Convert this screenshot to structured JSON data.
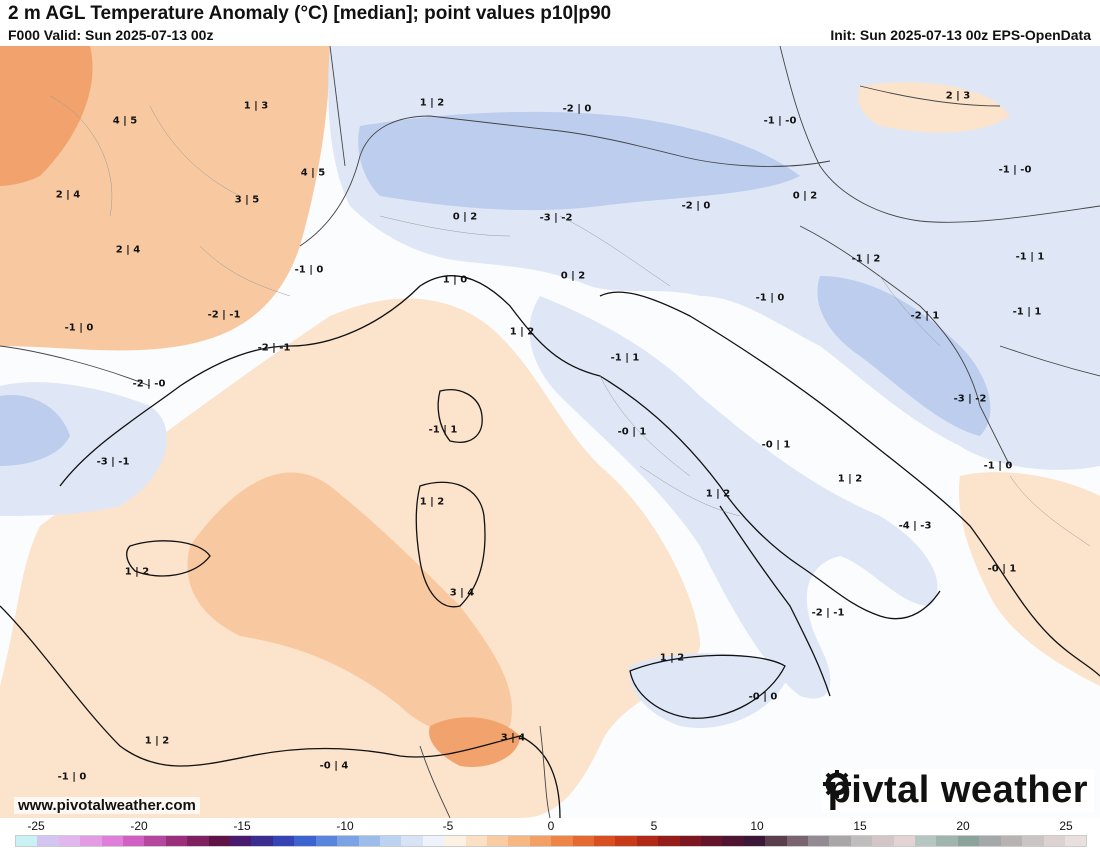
{
  "header": {
    "title": "2 m AGL Temperature Anomaly (°C) [median]; point values p10|p90",
    "valid": "F000 Valid: Sun 2025-07-13 00z",
    "init": "Init: Sun 2025-07-13 00z EPS-OpenData"
  },
  "footer": {
    "website": "www.pivotalweather.com",
    "brand_left": "piv",
    "brand_right": "tal weather"
  },
  "point_values": [
    {
      "text": "4 | 5"
    },
    {
      "text": "1 | 3"
    },
    {
      "text": "1 | 2"
    },
    {
      "text": "-2 | 0"
    },
    {
      "text": "-1 | -0"
    },
    {
      "text": "2 | 3"
    },
    {
      "text": "4 | 5"
    },
    {
      "text": "2 | 4"
    },
    {
      "text": "3 | 5"
    },
    {
      "text": "0 | 2"
    },
    {
      "text": "-3 | -2"
    },
    {
      "text": "-2 | 0"
    },
    {
      "text": "0 | 2"
    },
    {
      "text": "-1 | -0"
    },
    {
      "text": "2 | 4"
    },
    {
      "text": "-1 | 0"
    },
    {
      "text": "1 | 0"
    },
    {
      "text": "0 | 2"
    },
    {
      "text": "-1 | 2"
    },
    {
      "text": "-1 | 1"
    },
    {
      "text": "-1 | 0"
    },
    {
      "text": "-2 | -1"
    },
    {
      "text": "-1 | 0"
    },
    {
      "text": "-2 | 1"
    },
    {
      "text": "-1 | 1"
    },
    {
      "text": "1 | 2"
    },
    {
      "text": "-2 | -1"
    },
    {
      "text": "-1 | 1"
    },
    {
      "text": "-2 | -0"
    },
    {
      "text": "-3 | -2"
    },
    {
      "text": "-1 | 1"
    },
    {
      "text": "-0 | 1"
    },
    {
      "text": "-0 | 1"
    },
    {
      "text": "-3 | -1"
    },
    {
      "text": "-1 | 0"
    },
    {
      "text": "1 | 2"
    },
    {
      "text": "1 | 2"
    },
    {
      "text": "1 | 2"
    },
    {
      "text": "-4 | -3"
    },
    {
      "text": "1 | 2"
    },
    {
      "text": "-0 | 1"
    },
    {
      "text": "3 | 4"
    },
    {
      "text": "-2 | -1"
    },
    {
      "text": "1 | 2"
    },
    {
      "text": "-0 | 0"
    },
    {
      "text": "1 | 2"
    },
    {
      "text": "3 | 4"
    },
    {
      "text": "-0 | 4"
    },
    {
      "text": "-1 | 0"
    }
  ],
  "legend": {
    "ticks": [
      "-25",
      "-20",
      "-15",
      "-10",
      "-5",
      "0",
      "5",
      "10",
      "15",
      "20",
      "25"
    ],
    "range": [
      -25,
      25
    ],
    "colors": [
      "#c9f2f5",
      "#d3c4f0",
      "#e2b7ee",
      "#e39be4",
      "#e07fd9",
      "#d060c2",
      "#b6479f",
      "#9a307c",
      "#7f2060",
      "#5e1447",
      "#4a1a6e",
      "#3b2c8f",
      "#3543b5",
      "#3d63cf",
      "#5a85dc",
      "#7ba3e3",
      "#9cbcea",
      "#bcd2f1",
      "#d8e4f6",
      "#edf2fb",
      "#fdf1e3",
      "#fbe0c4",
      "#f9cda3",
      "#f6b782",
      "#f3a064",
      "#ee8548",
      "#e56a32",
      "#d84f22",
      "#c73a1a",
      "#b02a17",
      "#951e1b",
      "#7c1722",
      "#64152b",
      "#4e1432",
      "#3b1838",
      "#5a3e4c",
      "#7a6470",
      "#938b92",
      "#a9a6a8",
      "#bfbdbe",
      "#d3c5c8",
      "#e3d3d5",
      "#b6c7c1",
      "#9fb5ad",
      "#8aa49b",
      "#a4a8a8",
      "#b8b3b3",
      "#cbc4c4",
      "#ddd2d2",
      "#eadfdf"
    ],
    "colors_note": "anomaly color scale"
  },
  "map_colors": {
    "warm_light": "#fbe3cc",
    "warm": "#f8c9a0",
    "warm_strong": "#f2a26c",
    "cool_light": "#dfe7f6",
    "cool": "#bccdee",
    "cool_strong": "#9db4e3",
    "coast": "#111111",
    "border": "#555555"
  }
}
